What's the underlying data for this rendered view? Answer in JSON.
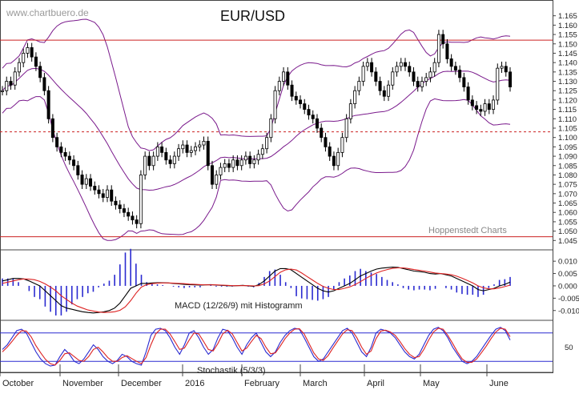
{
  "watermark": "www.chartbuero.de",
  "title": "EUR/USD",
  "source_note": "Hoppenstedt Charts",
  "colors": {
    "candle": "#000000",
    "bollinger": "#7a1a8c",
    "resistance": "#cc2222",
    "macd_line": "#000000",
    "signal_line": "#dd2222",
    "histogram": "#2a2ad0",
    "stoch_k": "#2a2ad0",
    "stoch_d": "#dd2222",
    "stoch_levels": "#2a2ad0"
  },
  "x_axis": {
    "labels": [
      "October",
      "November",
      "December",
      "2016",
      "February",
      "March",
      "April",
      "May",
      "June"
    ]
  },
  "chart_data": [
    {
      "type": "candlestick",
      "title": "EUR/USD",
      "ylim": [
        1.04,
        1.17
      ],
      "y_ticks": [
        "1.165",
        "1.160",
        "1.155",
        "1.150",
        "1.145",
        "1.140",
        "1.135",
        "1.130",
        "1.125",
        "1.120",
        "1.115",
        "1.110",
        "1.105",
        "1.100",
        "1.095",
        "1.090",
        "1.085",
        "1.080",
        "1.075",
        "1.070",
        "1.065",
        "1.060",
        "1.055",
        "1.050",
        "1.045"
      ],
      "horizontal_lines": [
        {
          "value": 1.152,
          "style": "solid"
        },
        {
          "value": 1.103,
          "style": "dashed"
        },
        {
          "value": 1.047,
          "style": "solid"
        }
      ],
      "close": [
        1.125,
        1.13,
        1.128,
        1.135,
        1.14,
        1.145,
        1.148,
        1.143,
        1.138,
        1.132,
        1.125,
        1.11,
        1.1,
        1.095,
        1.092,
        1.09,
        1.088,
        1.085,
        1.08,
        1.075,
        1.078,
        1.074,
        1.072,
        1.07,
        1.068,
        1.072,
        1.066,
        1.064,
        1.062,
        1.06,
        1.058,
        1.056,
        1.054,
        1.08,
        1.09,
        1.085,
        1.09,
        1.095,
        1.092,
        1.088,
        1.086,
        1.09,
        1.094,
        1.096,
        1.092,
        1.093,
        1.095,
        1.096,
        1.098,
        1.085,
        1.075,
        1.08,
        1.084,
        1.086,
        1.084,
        1.088,
        1.085,
        1.088,
        1.09,
        1.086,
        1.088,
        1.091,
        1.094,
        1.1,
        1.11,
        1.125,
        1.13,
        1.135,
        1.128,
        1.122,
        1.12,
        1.118,
        1.115,
        1.112,
        1.11,
        1.105,
        1.1,
        1.095,
        1.09,
        1.085,
        1.092,
        1.1,
        1.11,
        1.118,
        1.125,
        1.13,
        1.138,
        1.14,
        1.135,
        1.13,
        1.125,
        1.122,
        1.128,
        1.135,
        1.138,
        1.14,
        1.138,
        1.135,
        1.13,
        1.127,
        1.13,
        1.132,
        1.135,
        1.14,
        1.155,
        1.15,
        1.142,
        1.138,
        1.136,
        1.132,
        1.127,
        1.12,
        1.117,
        1.115,
        1.114,
        1.118,
        1.115,
        1.12,
        1.137,
        1.138,
        1.135,
        1.127
      ],
      "bollinger": {
        "upper": "upper band",
        "middle": "middle band",
        "lower": "lower band"
      }
    },
    {
      "type": "line",
      "title": "MACD (12/26/9) mit Histogramm",
      "ylim": [
        -0.013,
        0.012
      ],
      "y_ticks": [
        "0.010",
        "0.005",
        "0.000",
        "-0.005",
        "-0.010"
      ],
      "series": [
        {
          "name": "MACD",
          "values": [
            0.002,
            0.0025,
            0.003,
            0.003,
            0.0028,
            0.002,
            0.001,
            0.0,
            -0.002,
            -0.004,
            -0.006,
            -0.008,
            -0.009,
            -0.0095,
            -0.01,
            -0.0105,
            -0.0108,
            -0.011,
            -0.0108,
            -0.0105,
            -0.01,
            -0.009,
            -0.007,
            -0.004,
            -0.001,
            0.0,
            0.001,
            0.001,
            0.0012,
            0.0013,
            0.0013,
            0.0012,
            0.001,
            0.0008,
            0.0006,
            0.0005,
            0.0004,
            0.0003,
            0.0004,
            0.0005,
            0.0003,
            0.0002,
            0.0001,
            0.0,
            0.0001,
            0.0002,
            0.0,
            -0.0002,
            0.0005,
            0.002,
            0.004,
            0.006,
            0.007,
            0.007,
            0.0065,
            0.005,
            0.0035,
            0.002,
            0.0005,
            -0.001,
            -0.002,
            -0.0025,
            -0.002,
            -0.001,
            0.0,
            0.001,
            0.0025,
            0.004,
            0.005,
            0.006,
            0.0068,
            0.0072,
            0.0074,
            0.0076,
            0.0075,
            0.007,
            0.0065,
            0.006,
            0.0058,
            0.0055,
            0.005,
            0.0048,
            0.005,
            0.0045,
            0.004,
            0.003,
            0.002,
            0.001,
            0.0,
            -0.0015,
            -0.002,
            -0.0015,
            -0.001,
            0.0,
            0.0006,
            0.0015
          ]
        },
        {
          "name": "Signal",
          "values": [
            0.001,
            0.0015,
            0.002,
            0.0025,
            0.0028,
            0.0027,
            0.0025,
            0.0018,
            0.0008,
            -0.0005,
            -0.002,
            -0.004,
            -0.0055,
            -0.007,
            -0.0082,
            -0.009,
            -0.0098,
            -0.0102,
            -0.0106,
            -0.0108,
            -0.0107,
            -0.0105,
            -0.0099,
            -0.0085,
            -0.006,
            -0.003,
            -0.0005,
            0.0005,
            0.0009,
            0.0011,
            0.0012,
            0.0012,
            0.0011,
            0.001,
            0.0009,
            0.0007,
            0.0006,
            0.0005,
            0.0004,
            0.0004,
            0.0004,
            0.0003,
            0.0002,
            0.0001,
            0.0001,
            0.0001,
            0.0001,
            0.0,
            0.0001,
            0.0008,
            0.002,
            0.0038,
            0.0055,
            0.0065,
            0.0068,
            0.0064,
            0.0052,
            0.0038,
            0.0024,
            0.001,
            -0.0002,
            -0.001,
            -0.0015,
            -0.0015,
            -0.001,
            -0.0004,
            0.0005,
            0.0017,
            0.003,
            0.0042,
            0.0052,
            0.006,
            0.0066,
            0.0071,
            0.0073,
            0.0073,
            0.007,
            0.0066,
            0.0063,
            0.006,
            0.0056,
            0.0052,
            0.005,
            0.0048,
            0.0045,
            0.0039,
            0.0031,
            0.0022,
            0.0012,
            0.0,
            -0.0008,
            -0.0012,
            -0.0012,
            -0.0008,
            -0.0003,
            0.0003
          ]
        }
      ]
    },
    {
      "type": "line",
      "title": "Stochastik (5/3/3)",
      "ylim": [
        0,
        100
      ],
      "y_ticks": [
        "50"
      ],
      "levels": [
        80,
        20
      ],
      "series": [
        {
          "name": "%K",
          "values": [
            45,
            55,
            70,
            85,
            88,
            80,
            60,
            40,
            25,
            15,
            10,
            12,
            30,
            45,
            35,
            20,
            15,
            25,
            40,
            55,
            45,
            30,
            20,
            15,
            22,
            35,
            30,
            20,
            15,
            12,
            40,
            75,
            88,
            90,
            85,
            70,
            50,
            35,
            55,
            80,
            85,
            70,
            50,
            35,
            45,
            70,
            88,
            85,
            70,
            50,
            35,
            55,
            70,
            80,
            60,
            40,
            30,
            40,
            60,
            75,
            85,
            90,
            88,
            70,
            50,
            30,
            20,
            25,
            40,
            55,
            70,
            85,
            90,
            80,
            60,
            40,
            30,
            50,
            80,
            88,
            85,
            80,
            70,
            55,
            40,
            30,
            25,
            35,
            55,
            75,
            88,
            92,
            85,
            70,
            50,
            35,
            20,
            15,
            20,
            30,
            45,
            60,
            75,
            88,
            92,
            85,
            65
          ]
        },
        {
          "name": "%D",
          "values": [
            40,
            50,
            62,
            75,
            85,
            84,
            72,
            53,
            38,
            24,
            15,
            12,
            22,
            36,
            38,
            30,
            22,
            20,
            30,
            45,
            50,
            40,
            28,
            20,
            20,
            28,
            32,
            26,
            20,
            15,
            28,
            55,
            78,
            88,
            88,
            78,
            62,
            45,
            48,
            65,
            80,
            78,
            62,
            45,
            42,
            58,
            78,
            86,
            78,
            60,
            42,
            48,
            62,
            75,
            68,
            50,
            36,
            38,
            52,
            68,
            80,
            88,
            89,
            78,
            58,
            38,
            25,
            22,
            32,
            48,
            63,
            78,
            87,
            85,
            70,
            50,
            35,
            42,
            68,
            84,
            86,
            82,
            75,
            62,
            47,
            35,
            28,
            30,
            45,
            65,
            82,
            90,
            88,
            75,
            58,
            40,
            25,
            18,
            18,
            25,
            38,
            52,
            68,
            82,
            90,
            88,
            72
          ]
        }
      ]
    }
  ]
}
